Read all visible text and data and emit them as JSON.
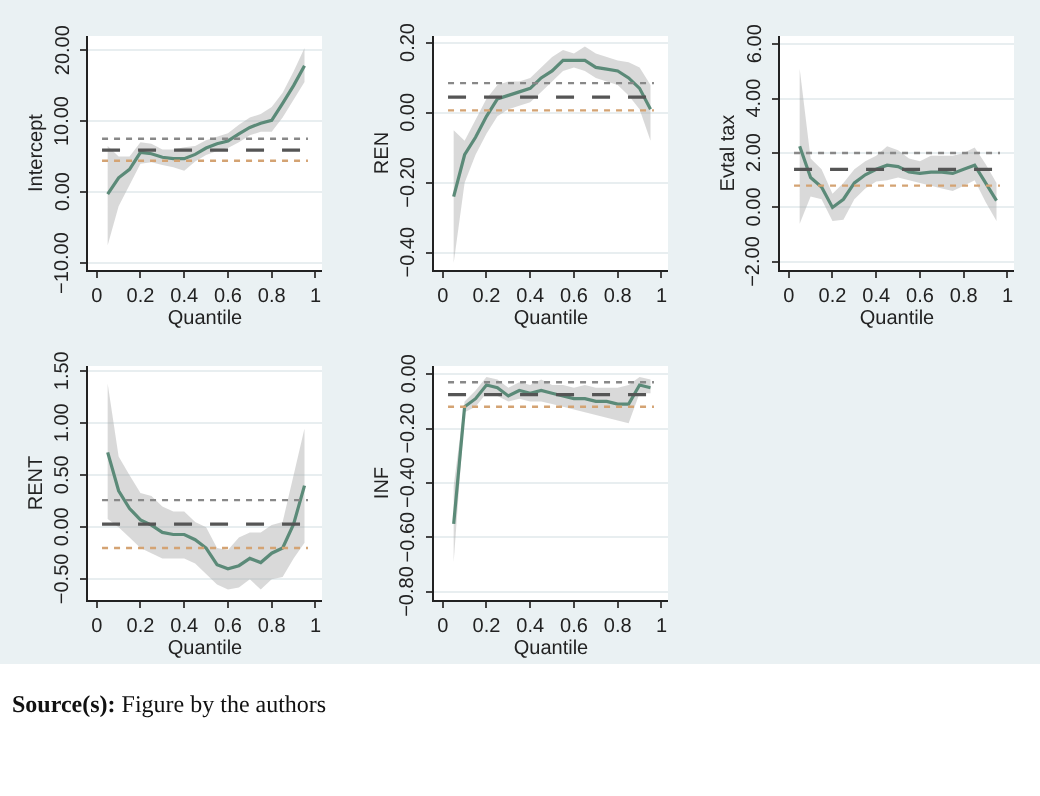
{
  "chart_data": [
    {
      "type": "line",
      "ylabel": "Intercept",
      "xlabel": "Quantile",
      "xlim": [
        -0.04,
        1.03
      ],
      "xticks": [
        0,
        0.2,
        0.4,
        0.6,
        0.8,
        1
      ],
      "ylim": [
        -11,
        22
      ],
      "yticks": [
        {
          "value": -10,
          "label": "−10.00"
        },
        {
          "value": 0,
          "label": "0.00"
        },
        {
          "value": 10,
          "label": "10.00"
        },
        {
          "value": 20,
          "label": "20.00"
        }
      ],
      "grid": "y",
      "x": [
        0.05,
        0.1,
        0.15,
        0.2,
        0.25,
        0.3,
        0.35,
        0.4,
        0.45,
        0.5,
        0.55,
        0.6,
        0.65,
        0.7,
        0.75,
        0.8,
        0.85,
        0.9,
        0.95
      ],
      "series": [
        {
          "color": "#5b8a78",
          "values": [
            -0.3,
            2,
            3.2,
            5.6,
            5.4,
            4.9,
            4.7,
            4.7,
            5.3,
            6.2,
            6.8,
            7.2,
            8.2,
            9.1,
            9.7,
            10.1,
            12.5,
            15,
            17.8
          ],
          "lower": [
            -7.5,
            -2,
            1,
            4,
            4.2,
            3.8,
            3.5,
            3,
            4.3,
            5.2,
            5.8,
            6.2,
            7,
            8,
            8.5,
            8.5,
            10.5,
            13,
            15.5
          ],
          "upper": [
            6.5,
            5,
            5,
            7,
            6.8,
            6,
            6,
            6.3,
            6.5,
            7.3,
            7.8,
            8.3,
            9.5,
            10.5,
            11,
            12,
            14,
            17,
            20.3
          ]
        }
      ],
      "ref_lines": [
        {
          "axis": "y",
          "value": 5.9,
          "color": "#555555",
          "line_style": "dashed"
        },
        {
          "axis": "y",
          "value": 7.5,
          "color": "#888888",
          "line_style": "dotted"
        },
        {
          "axis": "y",
          "value": 4.4,
          "color": "#d4a373",
          "line_style": "dotted"
        }
      ]
    },
    {
      "type": "line",
      "ylabel": "REN",
      "xlabel": "Quantile",
      "xlim": [
        -0.04,
        1.03
      ],
      "xticks": [
        0,
        0.2,
        0.4,
        0.6,
        0.8,
        1
      ],
      "ylim": [
        -0.45,
        0.22
      ],
      "yticks": [
        {
          "value": -0.4,
          "label": "−0.40"
        },
        {
          "value": -0.2,
          "label": "−0.20"
        },
        {
          "value": 0,
          "label": "0.00"
        },
        {
          "value": 0.2,
          "label": "0.20"
        }
      ],
      "grid": "y",
      "x": [
        0.05,
        0.1,
        0.15,
        0.2,
        0.25,
        0.3,
        0.35,
        0.4,
        0.45,
        0.5,
        0.55,
        0.6,
        0.65,
        0.7,
        0.75,
        0.8,
        0.85,
        0.9,
        0.95
      ],
      "series": [
        {
          "color": "#5b8a78",
          "values": [
            -0.24,
            -0.12,
            -0.07,
            -0.01,
            0.04,
            0.05,
            0.06,
            0.07,
            0.1,
            0.12,
            0.15,
            0.15,
            0.15,
            0.13,
            0.125,
            0.12,
            0.1,
            0.07,
            0.01
          ],
          "lower": [
            -0.43,
            -0.2,
            -0.12,
            -0.06,
            -0.01,
            0.01,
            0.02,
            0.03,
            0.06,
            0.09,
            0.12,
            0.13,
            0.12,
            0.1,
            0.09,
            0.08,
            0.05,
            0.01,
            -0.08
          ],
          "upper": [
            -0.05,
            -0.08,
            -0.02,
            0.04,
            0.08,
            0.09,
            0.09,
            0.1,
            0.13,
            0.16,
            0.18,
            0.17,
            0.19,
            0.17,
            0.16,
            0.15,
            0.145,
            0.13,
            0.08
          ]
        }
      ],
      "ref_lines": [
        {
          "axis": "y",
          "value": 0.045,
          "color": "#555555",
          "line_style": "dashed"
        },
        {
          "axis": "y",
          "value": 0.085,
          "color": "#888888",
          "line_style": "dotted"
        },
        {
          "axis": "y",
          "value": 0.007,
          "color": "#d4a373",
          "line_style": "dotted"
        }
      ]
    },
    {
      "type": "line",
      "ylabel": "Evtal tax",
      "xlabel": "Quantile",
      "xlim": [
        -0.04,
        1.03
      ],
      "xticks": [
        0,
        0.2,
        0.4,
        0.6,
        0.8,
        1
      ],
      "ylim": [
        -2.3,
        6.3
      ],
      "yticks": [
        {
          "value": -2,
          "label": "−2.00"
        },
        {
          "value": 0,
          "label": "0.00"
        },
        {
          "value": 2,
          "label": "2.00"
        },
        {
          "value": 4,
          "label": "4.00"
        },
        {
          "value": 6,
          "label": "6.00"
        }
      ],
      "grid": "y",
      "x": [
        0.05,
        0.1,
        0.15,
        0.2,
        0.25,
        0.3,
        0.35,
        0.4,
        0.45,
        0.5,
        0.55,
        0.6,
        0.65,
        0.7,
        0.75,
        0.8,
        0.85,
        0.9,
        0.95
      ],
      "series": [
        {
          "color": "#5b8a78",
          "values": [
            2.25,
            1.1,
            0.75,
            0,
            0.3,
            0.9,
            1.2,
            1.4,
            1.55,
            1.5,
            1.3,
            1.25,
            1.3,
            1.3,
            1.25,
            1.4,
            1.55,
            0.9,
            0.25
          ],
          "lower": [
            -0.6,
            0.4,
            0.3,
            -0.5,
            -0.45,
            0.3,
            0.7,
            0.95,
            1,
            1.1,
            1,
            0.9,
            0.8,
            0.7,
            0.6,
            0.8,
            1,
            0.2,
            -0.5
          ],
          "upper": [
            5.1,
            1.8,
            1.4,
            0.5,
            0.9,
            1.4,
            1.7,
            1.9,
            2.25,
            2.1,
            1.8,
            1.7,
            1.9,
            1.9,
            1.9,
            2,
            2.2,
            1.6,
            0.9
          ]
        }
      ],
      "ref_lines": [
        {
          "axis": "y",
          "value": 1.4,
          "color": "#555555",
          "line_style": "dashed"
        },
        {
          "axis": "y",
          "value": 2,
          "color": "#888888",
          "line_style": "dotted"
        },
        {
          "axis": "y",
          "value": 0.8,
          "color": "#d4a373",
          "line_style": "dotted"
        }
      ]
    },
    {
      "type": "line",
      "ylabel": "RENT",
      "xlabel": "Quantile",
      "xlim": [
        -0.04,
        1.03
      ],
      "xticks": [
        0,
        0.2,
        0.4,
        0.6,
        0.8,
        1
      ],
      "ylim": [
        -0.7,
        1.55
      ],
      "yticks": [
        {
          "value": -0.5,
          "label": "−0.50"
        },
        {
          "value": 0,
          "label": "0.00"
        },
        {
          "value": 0.5,
          "label": "0.50"
        },
        {
          "value": 1,
          "label": "1.00"
        },
        {
          "value": 1.5,
          "label": "1.50"
        }
      ],
      "grid": "y",
      "x": [
        0.05,
        0.1,
        0.15,
        0.2,
        0.25,
        0.3,
        0.35,
        0.4,
        0.45,
        0.5,
        0.55,
        0.6,
        0.65,
        0.7,
        0.75,
        0.8,
        0.85,
        0.9,
        0.95
      ],
      "series": [
        {
          "color": "#5b8a78",
          "values": [
            0.72,
            0.35,
            0.18,
            0.07,
            0.02,
            -0.05,
            -0.07,
            -0.07,
            -0.12,
            -0.2,
            -0.36,
            -0.4,
            -0.37,
            -0.3,
            -0.34,
            -0.25,
            -0.2,
            0.03,
            0.4
          ],
          "lower": [
            0.08,
            0,
            -0.1,
            -0.2,
            -0.25,
            -0.3,
            -0.3,
            -0.3,
            -0.35,
            -0.45,
            -0.55,
            -0.6,
            -0.58,
            -0.5,
            -0.6,
            -0.5,
            -0.48,
            -0.3,
            -0.15
          ],
          "upper": [
            1.38,
            0.68,
            0.5,
            0.33,
            0.3,
            0.2,
            0.15,
            0.15,
            0.05,
            0,
            -0.2,
            -0.22,
            -0.1,
            -0.05,
            -0.05,
            0.02,
            0.05,
            0.5,
            0.95
          ]
        }
      ],
      "ref_lines": [
        {
          "axis": "y",
          "value": 0.03,
          "color": "#555555",
          "line_style": "dashed"
        },
        {
          "axis": "y",
          "value": 0.26,
          "color": "#888888",
          "line_style": "dotted"
        },
        {
          "axis": "y",
          "value": -0.2,
          "color": "#d4a373",
          "line_style": "dotted"
        }
      ]
    },
    {
      "type": "line",
      "ylabel": "INF",
      "xlabel": "Quantile",
      "xlim": [
        -0.04,
        1.03
      ],
      "xticks": [
        0,
        0.2,
        0.4,
        0.6,
        0.8,
        1
      ],
      "ylim": [
        -0.83,
        0.03
      ],
      "yticks": [
        {
          "value": -0.8,
          "label": "−0.80"
        },
        {
          "value": -0.6,
          "label": "−0.60"
        },
        {
          "value": -0.4,
          "label": "−0.40"
        },
        {
          "value": -0.2,
          "label": "−0.20"
        },
        {
          "value": 0,
          "label": "0.00"
        }
      ],
      "grid": "y",
      "x": [
        0.05,
        0.1,
        0.15,
        0.2,
        0.25,
        0.3,
        0.35,
        0.4,
        0.45,
        0.5,
        0.55,
        0.6,
        0.65,
        0.7,
        0.75,
        0.8,
        0.85,
        0.9,
        0.95
      ],
      "series": [
        {
          "color": "#5b8a78",
          "values": [
            -0.55,
            -0.12,
            -0.09,
            -0.04,
            -0.05,
            -0.08,
            -0.06,
            -0.07,
            -0.06,
            -0.07,
            -0.08,
            -0.09,
            -0.09,
            -0.1,
            -0.1,
            -0.11,
            -0.11,
            -0.04,
            -0.05
          ],
          "lower": [
            -0.69,
            -0.14,
            -0.12,
            -0.07,
            -0.08,
            -0.1,
            -0.09,
            -0.1,
            -0.1,
            -0.11,
            -0.12,
            -0.13,
            -0.14,
            -0.15,
            -0.16,
            -0.17,
            -0.18,
            -0.07,
            -0.07
          ],
          "upper": [
            -0.41,
            -0.1,
            -0.06,
            -0.01,
            -0.02,
            -0.05,
            -0.03,
            -0.04,
            -0.02,
            -0.04,
            -0.04,
            -0.05,
            -0.04,
            -0.05,
            -0.05,
            -0.05,
            -0.04,
            -0.01,
            -0.02
          ]
        }
      ],
      "ref_lines": [
        {
          "axis": "y",
          "value": -0.075,
          "color": "#555555",
          "line_style": "dashed"
        },
        {
          "axis": "y",
          "value": -0.03,
          "color": "#888888",
          "line_style": "dotted"
        },
        {
          "axis": "y",
          "value": -0.12,
          "color": "#d4a373",
          "line_style": "dotted"
        }
      ],
      "annotations": [
        "Source(s): Figure by the authors"
      ]
    }
  ]
}
